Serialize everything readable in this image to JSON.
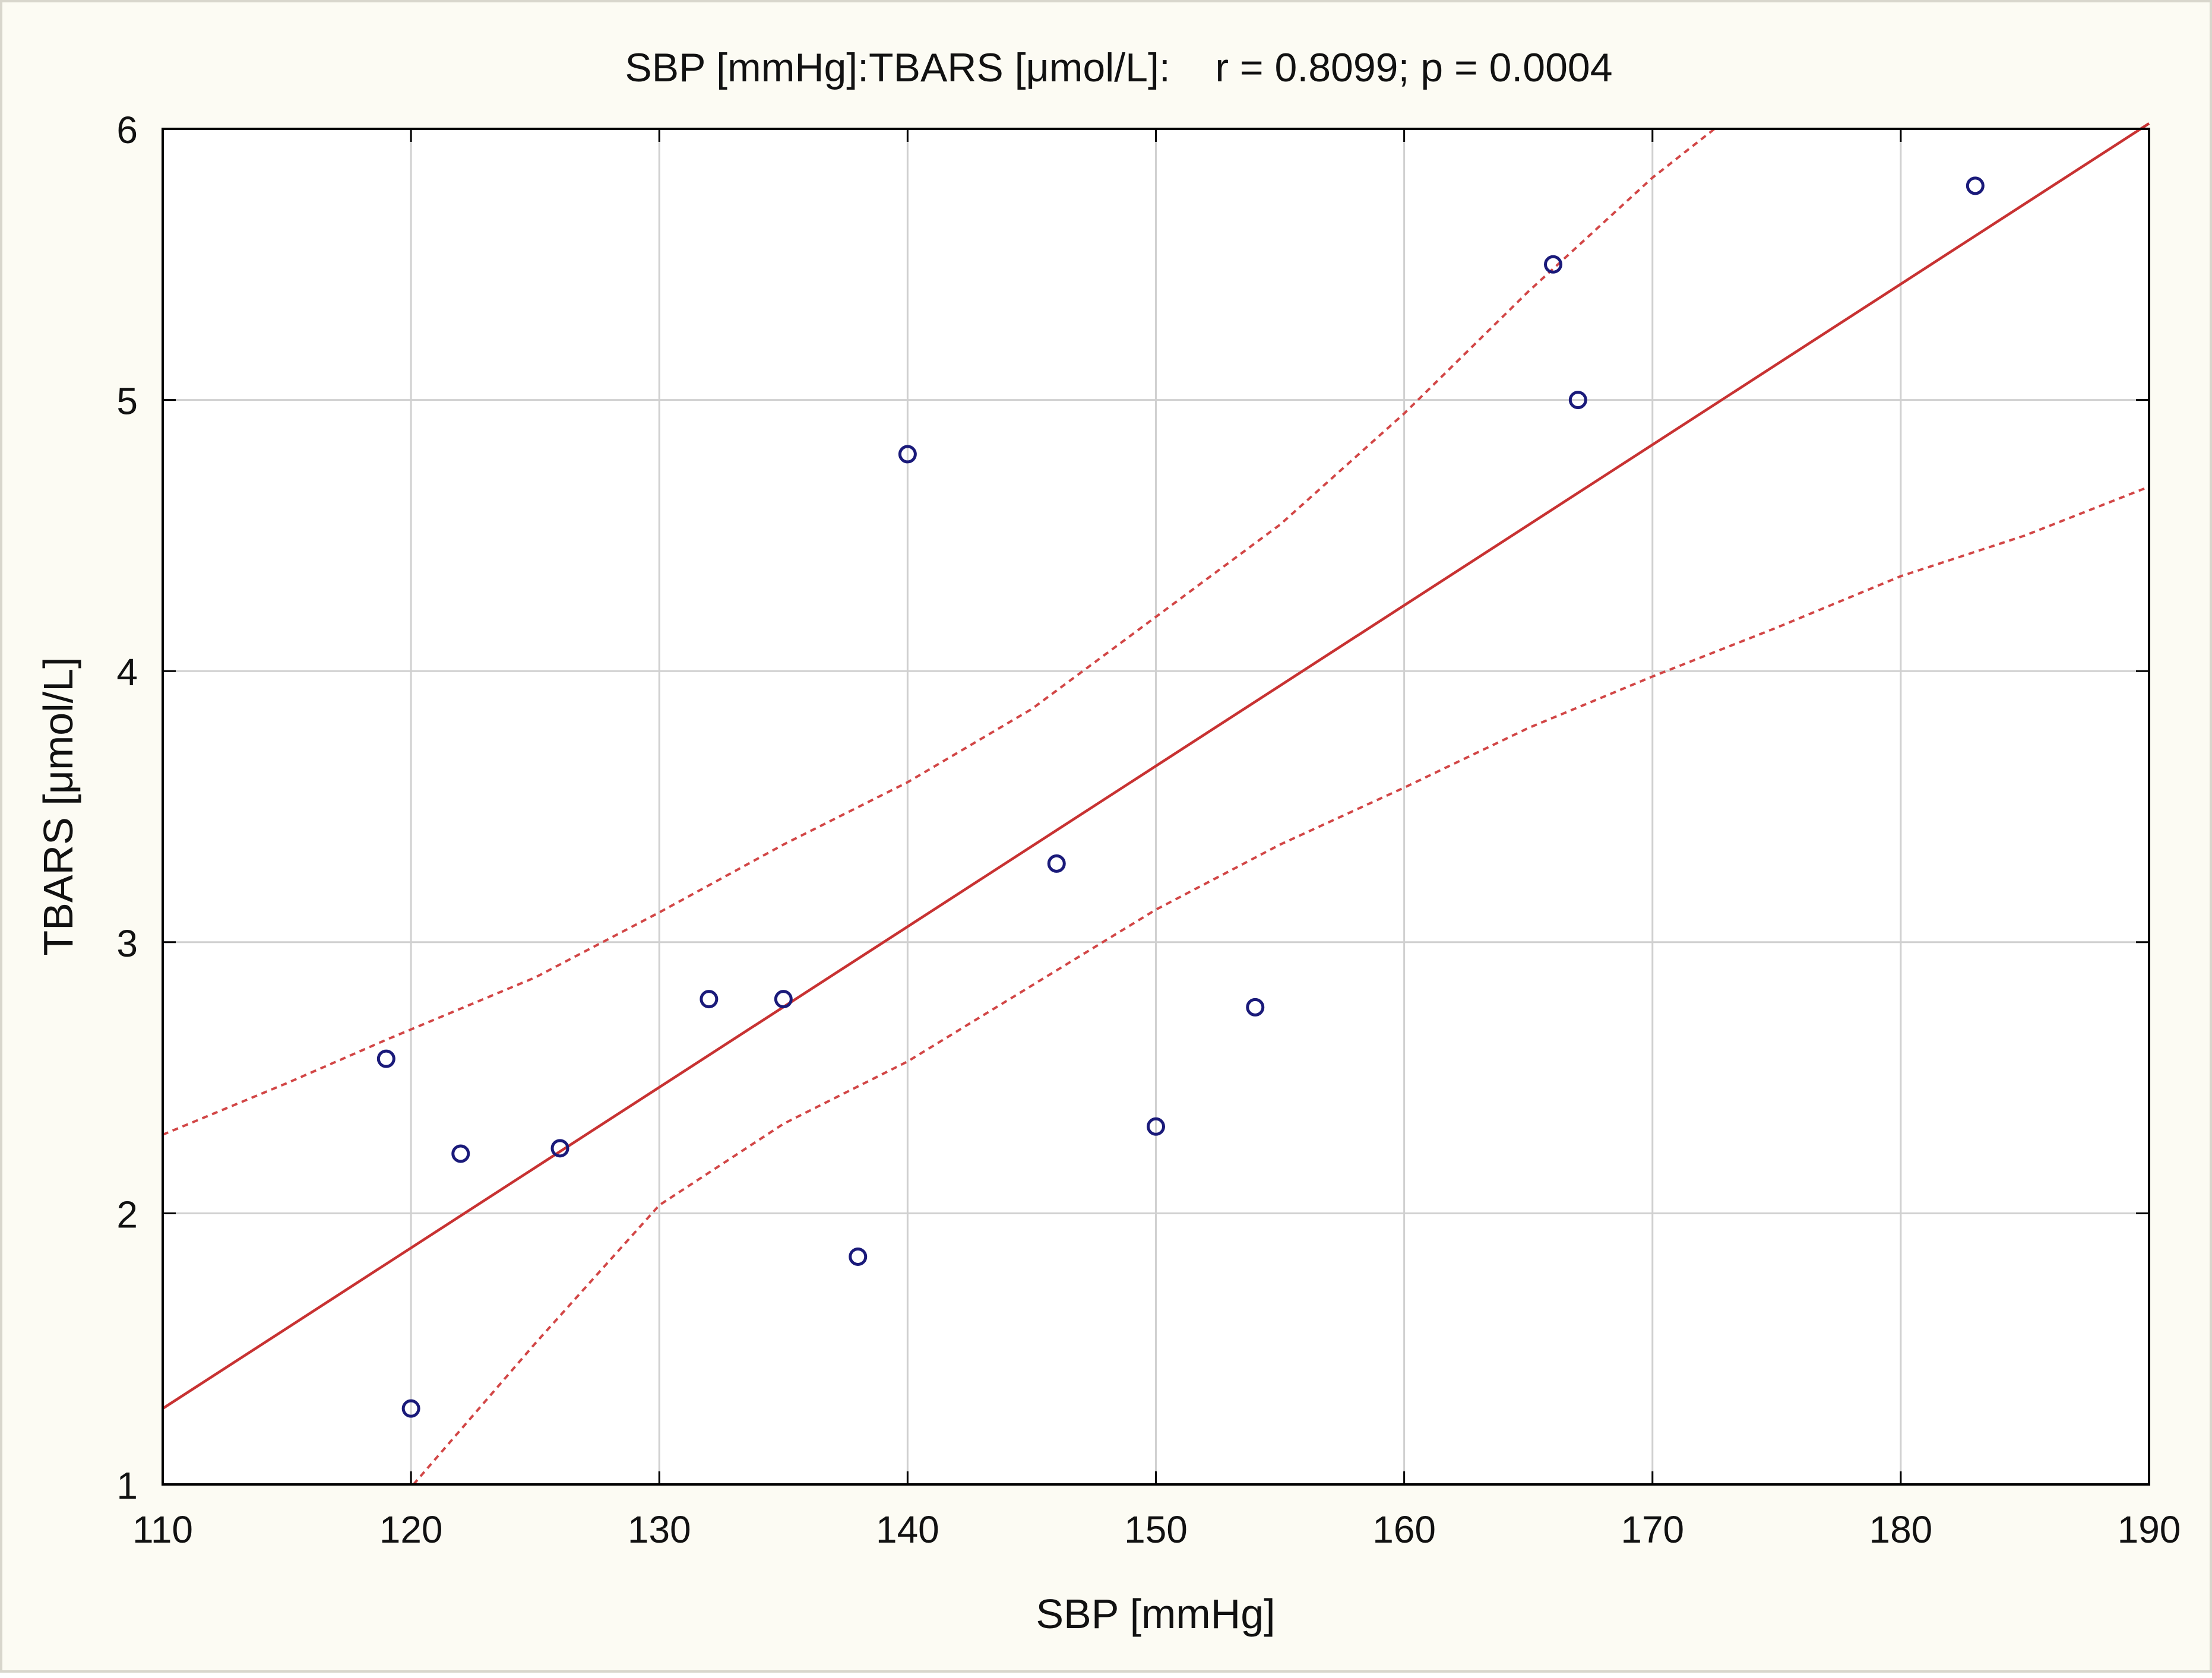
{
  "chart_data": {
    "type": "scatter",
    "title": "SBP [mmHg]:TBARS [μmol/L]:    r = 0.8099; p = 0.0004",
    "xlabel": "SBP [mmHg]",
    "ylabel": "TBARS [μmol/L]",
    "xlim": [
      110,
      190
    ],
    "ylim": [
      1,
      6
    ],
    "xticks": [
      110,
      120,
      130,
      140,
      150,
      160,
      170,
      180,
      190
    ],
    "yticks": [
      1,
      2,
      3,
      4,
      5,
      6
    ],
    "grid": true,
    "points": {
      "x": [
        119,
        120,
        122,
        126,
        132,
        135,
        138,
        140,
        146,
        150,
        154,
        166,
        167,
        183
      ],
      "y": [
        2.57,
        1.28,
        2.22,
        2.24,
        2.79,
        2.79,
        1.84,
        4.8,
        3.29,
        2.32,
        2.76,
        5.5,
        5.0,
        5.79
      ]
    },
    "regression": {
      "x": [
        110,
        190
      ],
      "y": [
        1.28,
        6.02
      ]
    },
    "confidence_upper": {
      "x": [
        110,
        115,
        119,
        125,
        130,
        135,
        140,
        145,
        150,
        155,
        160,
        165,
        170,
        172.5
      ],
      "y": [
        2.29,
        2.48,
        2.64,
        2.87,
        3.11,
        3.36,
        3.59,
        3.86,
        4.2,
        4.54,
        4.95,
        5.4,
        5.82,
        6.0
      ]
    },
    "confidence_lower": {
      "x": [
        120.1,
        125,
        130,
        135,
        140,
        145,
        150,
        155,
        160,
        165,
        170,
        175,
        180,
        185,
        190
      ],
      "y": [
        1.0,
        1.52,
        2.03,
        2.33,
        2.56,
        2.84,
        3.12,
        3.36,
        3.57,
        3.79,
        3.98,
        4.16,
        4.35,
        4.5,
        4.68
      ]
    },
    "colors": {
      "points": "#1a1a7a",
      "regression": "#c83232",
      "confidence": "#d24646",
      "grid": "#d0d0d0",
      "axis": "#000000",
      "plot_background": "#ffffff",
      "figure_background": "#fcfbf3"
    }
  }
}
